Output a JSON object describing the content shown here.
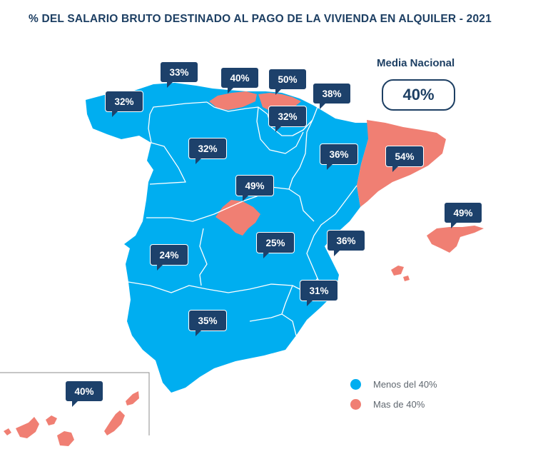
{
  "title": "% DEL SALARIO BRUTO DESTINADO AL PAGO DE LA VIVIENDA EN ALQUILER - 2021",
  "media": {
    "label": "Media Nacional",
    "value": "40%"
  },
  "legend": [
    {
      "label": "Menos del 40%",
      "color": "#00aef0"
    },
    {
      "label": "Mas de 40%",
      "color": "#f07f73"
    }
  ],
  "regions": [
    {
      "name": "Galicia",
      "value": "32%",
      "category": "below"
    },
    {
      "name": "Asturias",
      "value": "33%",
      "category": "below"
    },
    {
      "name": "Cantabria",
      "value": "40%",
      "category": "above"
    },
    {
      "name": "País Vasco",
      "value": "50%",
      "category": "above"
    },
    {
      "name": "Navarra",
      "value": "38%",
      "category": "below"
    },
    {
      "name": "La Rioja",
      "value": "32%",
      "category": "below"
    },
    {
      "name": "Castilla y León",
      "value": "32%",
      "category": "below"
    },
    {
      "name": "Aragón",
      "value": "36%",
      "category": "below"
    },
    {
      "name": "Cataluña",
      "value": "54%",
      "category": "above"
    },
    {
      "name": "Madrid",
      "value": "49%",
      "category": "above"
    },
    {
      "name": "Baleares",
      "value": "49%",
      "category": "above"
    },
    {
      "name": "Extremadura",
      "value": "24%",
      "category": "below"
    },
    {
      "name": "Castilla-La Mancha",
      "value": "25%",
      "category": "below"
    },
    {
      "name": "C. Valenciana",
      "value": "36%",
      "category": "below"
    },
    {
      "name": "Murcia",
      "value": "31%",
      "category": "below"
    },
    {
      "name": "Andalucía",
      "value": "35%",
      "category": "below"
    },
    {
      "name": "Canarias",
      "value": "40%",
      "category": "above"
    }
  ]
}
